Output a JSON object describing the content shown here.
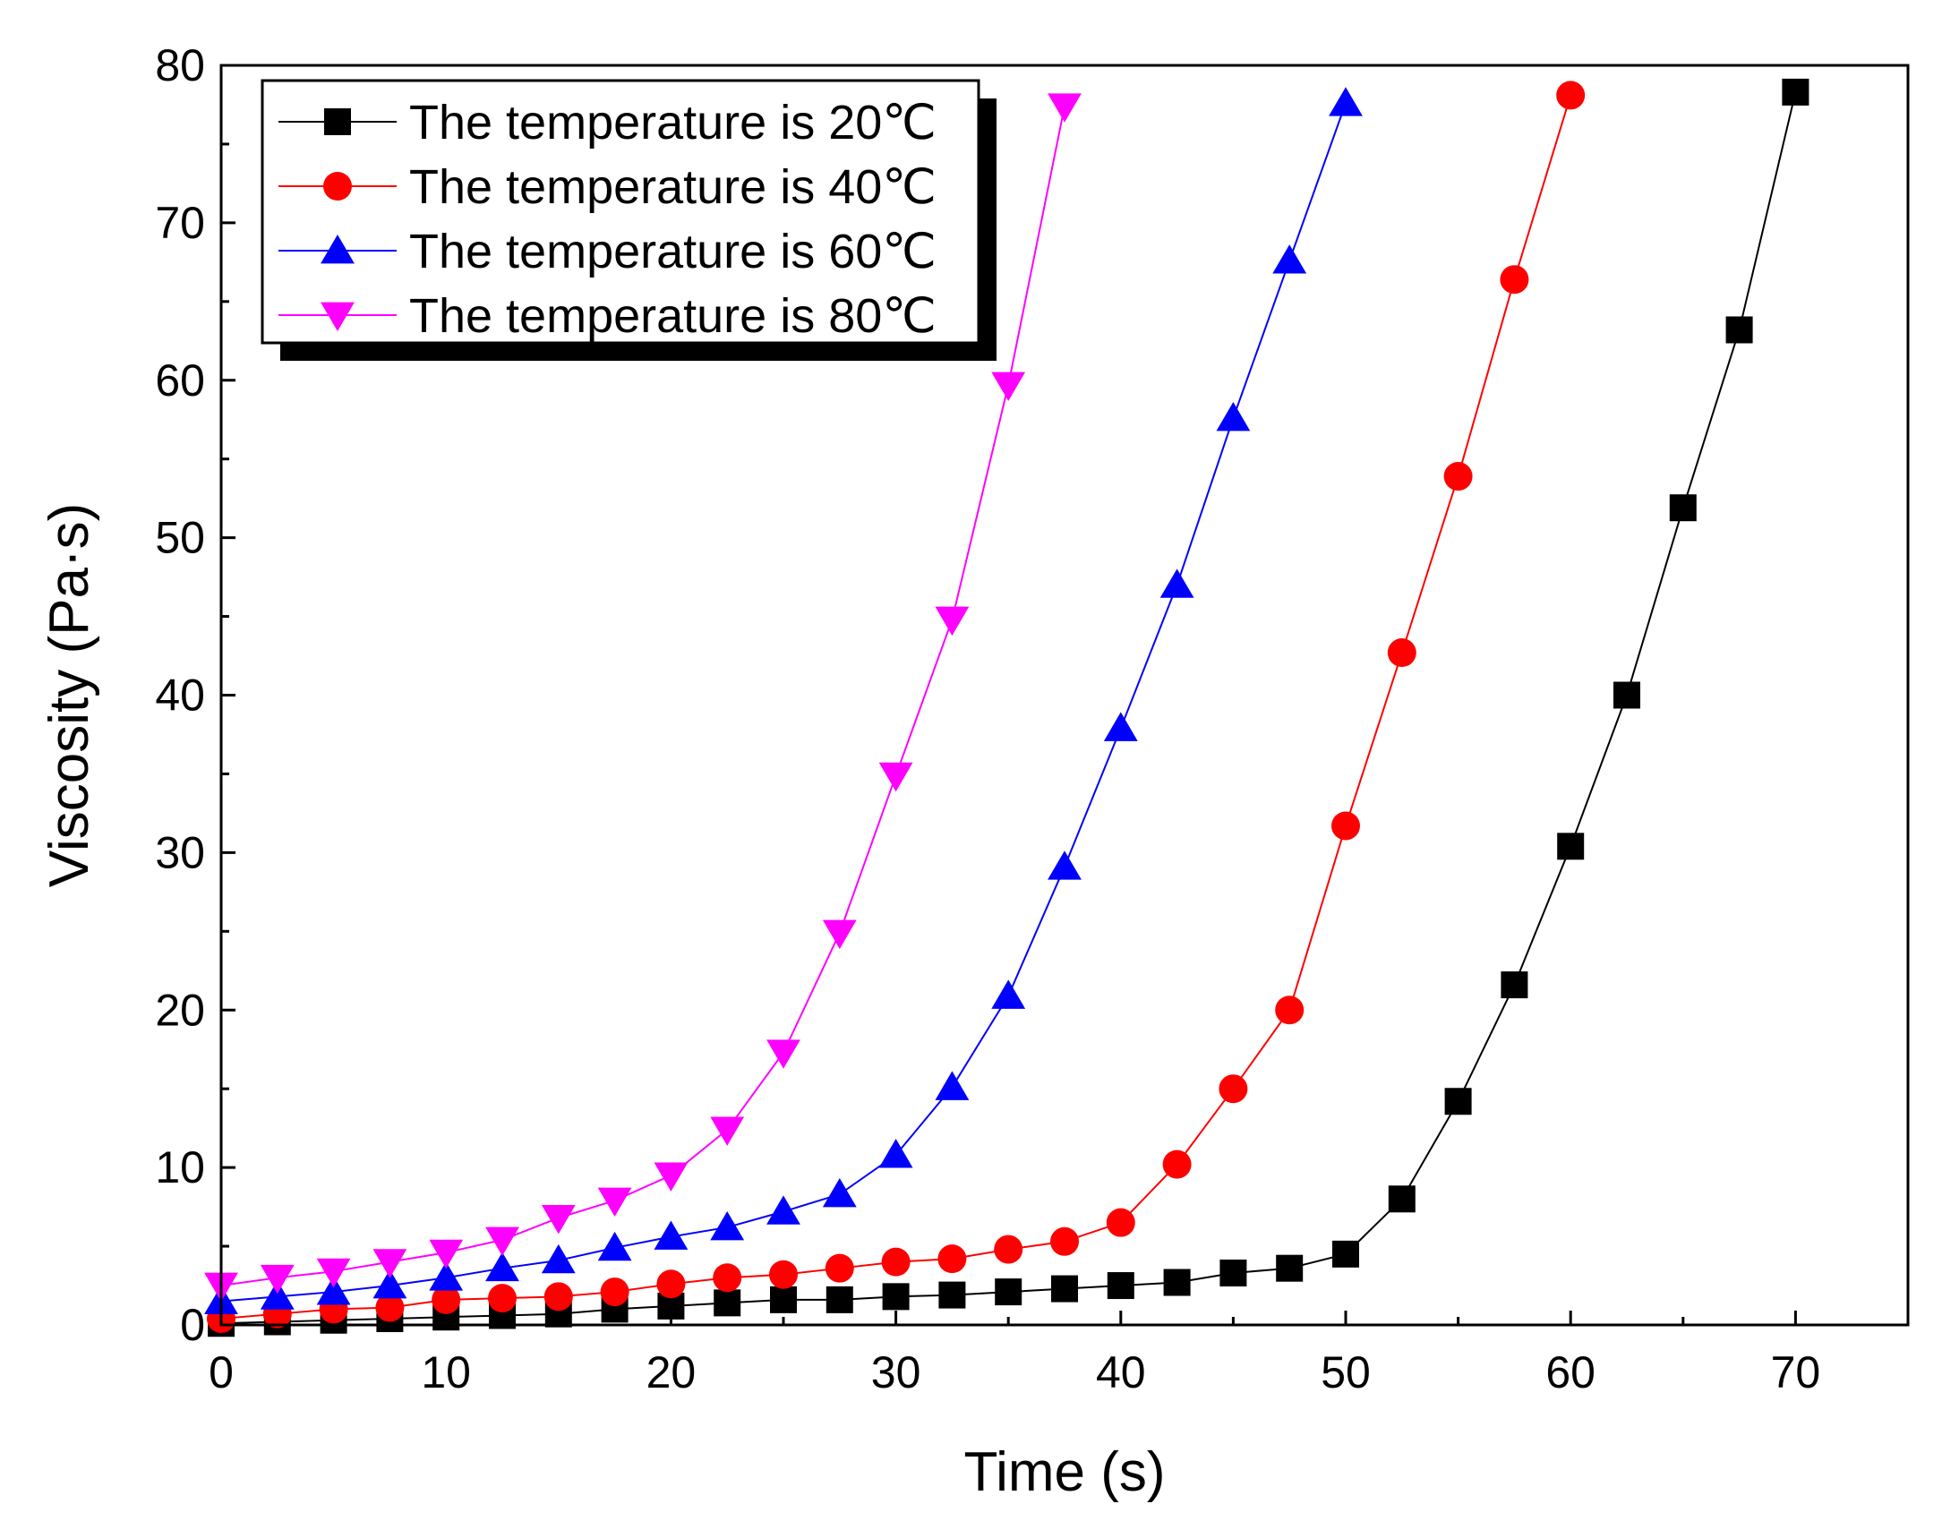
{
  "chart_data": {
    "type": "line",
    "title": "",
    "xlabel": "Time (s)",
    "ylabel": "Viscosity (Pa·s)",
    "xlim": [
      0,
      75
    ],
    "ylim": [
      0,
      80
    ],
    "xticks": [
      "0",
      "10",
      "20",
      "30",
      "40",
      "50",
      "60",
      "70"
    ],
    "yticks": [
      "0",
      "10",
      "20",
      "30",
      "40",
      "50",
      "60",
      "70",
      "80"
    ],
    "grid": false,
    "legend_position": "top-left",
    "series": [
      {
        "name": "The temperature is 20℃",
        "color": "#000000",
        "marker": "square",
        "x": [
          0,
          2.5,
          5,
          7.5,
          10,
          12.5,
          15,
          17.5,
          20,
          22.5,
          25,
          27.5,
          30,
          32.5,
          35,
          37.5,
          40,
          42.5,
          45,
          47.5,
          50,
          52.5,
          55,
          57.5,
          60,
          62.5,
          65,
          67.5,
          70
        ],
        "y": [
          0.1,
          0.2,
          0.3,
          0.4,
          0.5,
          0.6,
          0.7,
          1.0,
          1.2,
          1.4,
          1.6,
          1.6,
          1.8,
          1.9,
          2.1,
          2.3,
          2.5,
          2.7,
          3.3,
          3.6,
          4.5,
          8.0,
          14.2,
          21.6,
          30.4,
          40.0,
          51.9,
          63.2,
          78.3
        ]
      },
      {
        "name": "The temperature is 40℃",
        "color": "#ff0000",
        "marker": "circle",
        "x": [
          0,
          2.5,
          5,
          7.5,
          10,
          12.5,
          15,
          17.5,
          20,
          22.5,
          25,
          27.5,
          30,
          32.5,
          35,
          37.5,
          40,
          42.5,
          45,
          47.5,
          50,
          52.5,
          55,
          57.5,
          60
        ],
        "y": [
          0.4,
          0.7,
          1.0,
          1.1,
          1.6,
          1.7,
          1.8,
          2.1,
          2.6,
          3.0,
          3.2,
          3.6,
          4.0,
          4.2,
          4.8,
          5.3,
          6.5,
          10.2,
          15.0,
          20.0,
          31.7,
          42.7,
          53.9,
          66.4,
          78.1
        ]
      },
      {
        "name": "The temperature is 60℃",
        "color": "#0000ff",
        "marker": "triangle-up",
        "x": [
          0,
          2.5,
          5,
          7.5,
          10,
          12.5,
          15,
          17.5,
          20,
          22.5,
          25,
          27.5,
          30,
          32.5,
          35,
          37.5,
          40,
          42.5,
          45,
          47.5,
          50
        ],
        "y": [
          1.5,
          1.8,
          2.1,
          2.5,
          3.0,
          3.6,
          4.1,
          4.9,
          5.6,
          6.2,
          7.2,
          8.3,
          10.8,
          15.1,
          20.9,
          29.1,
          37.9,
          47.0,
          57.6,
          67.6,
          77.6
        ]
      },
      {
        "name": "The temperature is 80℃",
        "color": "#ff00ff",
        "marker": "triangle-down",
        "x": [
          0,
          2.5,
          5,
          7.5,
          10,
          12.5,
          15,
          17.5,
          20,
          22.5,
          25,
          27.5,
          30,
          32.5,
          35,
          37.5
        ],
        "y": [
          2.5,
          3.0,
          3.4,
          4.0,
          4.6,
          5.4,
          6.8,
          7.9,
          9.5,
          12.4,
          17.3,
          24.9,
          34.9,
          44.8,
          59.7,
          77.4
        ]
      }
    ]
  }
}
